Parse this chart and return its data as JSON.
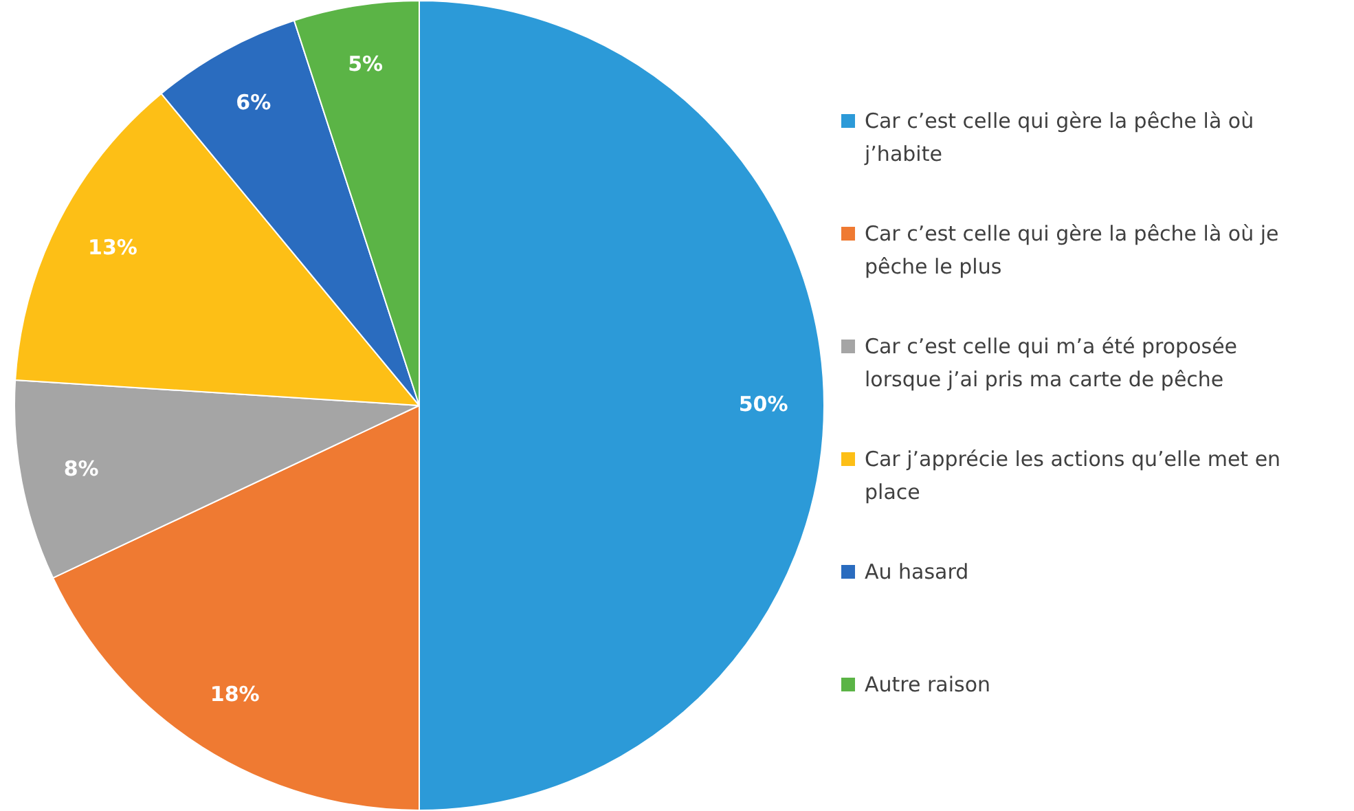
{
  "chart_data": {
    "type": "pie",
    "categories": [
      "Car c’est celle qui gère la pêche là où j’habite",
      "Car c’est celle qui gère la pêche là où je pêche le plus",
      "Car c’est celle qui m’a été proposée lorsque j’ai pris ma carte de pêche",
      "Car j’apprécie les actions qu’elle met en place",
      "Au hasard",
      "Autre raison"
    ],
    "values": [
      50,
      18,
      8,
      13,
      6,
      5
    ],
    "colors": [
      "#2c9ad8",
      "#ef7a32",
      "#a5a5a5",
      "#fdbf16",
      "#2a6cbf",
      "#5bb446"
    ],
    "value_labels": [
      "50%",
      "18%",
      "8%",
      "13%",
      "6%",
      "5%"
    ],
    "legend": "right"
  }
}
